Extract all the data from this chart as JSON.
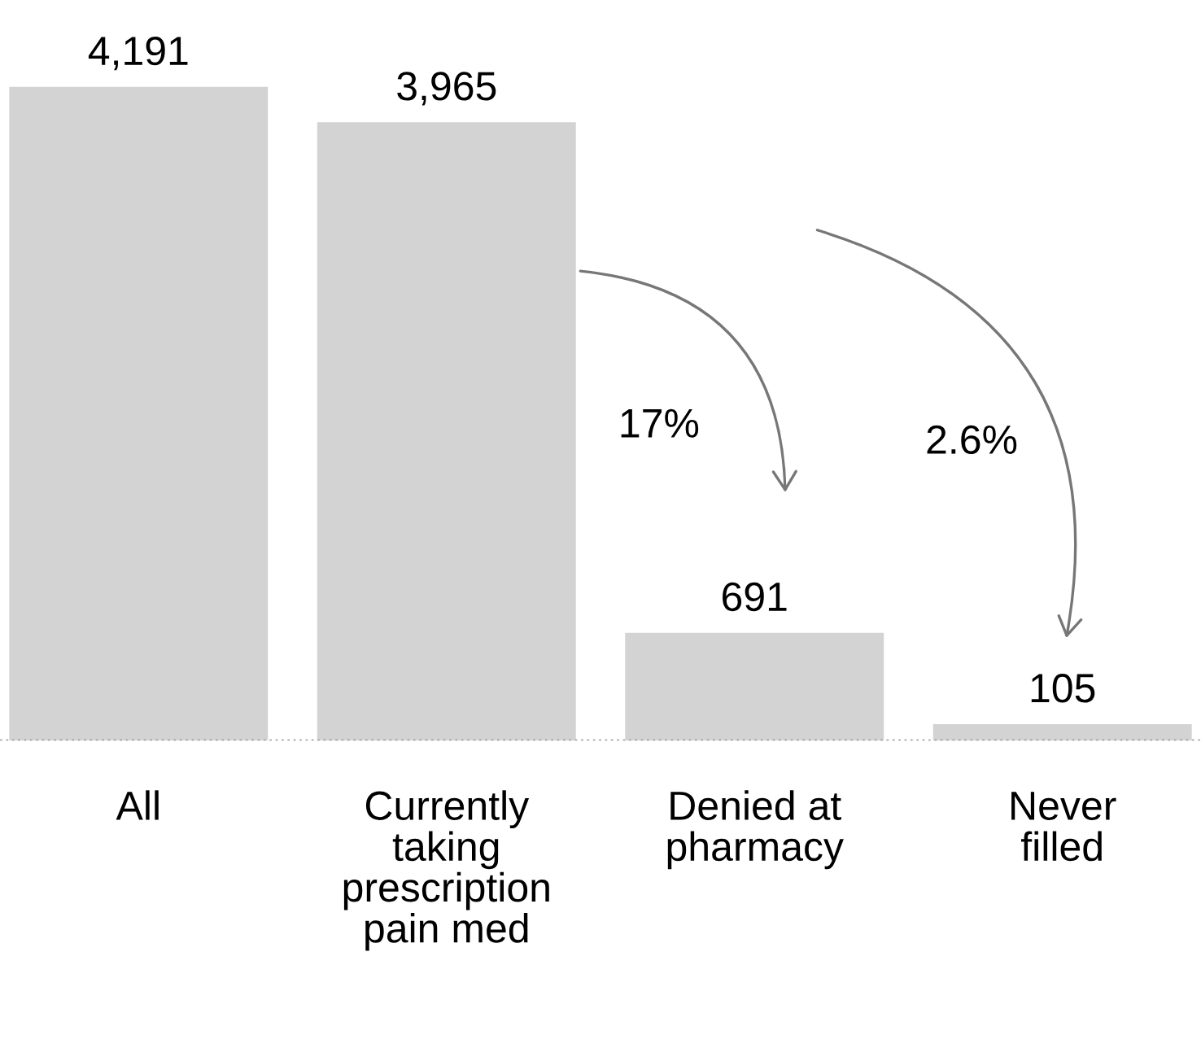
{
  "chart_data": {
    "type": "bar",
    "categories": [
      "All",
      "Currently\ntaking\nprescription\npain med",
      "Denied at\npharmacy",
      "Never\nfilled"
    ],
    "values": [
      4191,
      3965,
      691,
      105
    ],
    "value_labels": [
      "4,191",
      "3,965",
      "691",
      "105"
    ],
    "color": "#d3d3d3",
    "annotations": [
      "17%",
      "2.6%"
    ],
    "grid": false,
    "legend": false
  }
}
